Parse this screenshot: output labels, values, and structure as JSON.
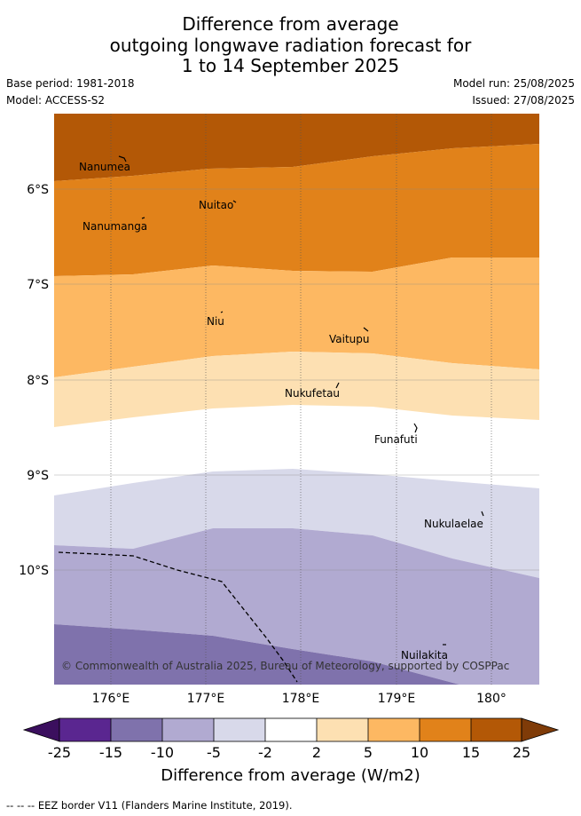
{
  "title_lines": [
    "Difference from average",
    "outgoing longwave radiation forecast for",
    "1 to 14 September 2025"
  ],
  "meta": {
    "base_period": "Base period: 1981-2018",
    "model": "Model: ACCESS-S2",
    "model_run": "Model run: 25/08/2025",
    "issued": "Issued: 27/08/2025"
  },
  "map": {
    "lon_ticks": [
      {
        "value": 176,
        "label": "176°E"
      },
      {
        "value": 177,
        "label": "177°E"
      },
      {
        "value": 178,
        "label": "178°E"
      },
      {
        "value": 179,
        "label": "179°E"
      },
      {
        "value": 180,
        "label": "180°"
      }
    ],
    "lat_ticks": [
      {
        "value": -6,
        "label": "6°S"
      },
      {
        "value": -7,
        "label": "7°S"
      },
      {
        "value": -8,
        "label": "8°S"
      },
      {
        "value": -9,
        "label": "9°S"
      },
      {
        "value": -10,
        "label": "10°S"
      }
    ],
    "places": [
      {
        "name": "Nanumea",
        "lon": 176.13,
        "lat": -5.68
      },
      {
        "name": "Nuitao",
        "lon": 177.29,
        "lat": -6.11
      },
      {
        "name": "Nanumanga",
        "lon": 176.32,
        "lat": -6.29
      },
      {
        "name": "Niu",
        "lon": 177.17,
        "lat": -7.29
      },
      {
        "name": "Vaitupu",
        "lon": 178.68,
        "lat": -7.48
      },
      {
        "name": "Nukufetau",
        "lon": 178.38,
        "lat": -8.03
      },
      {
        "name": "Funafuti",
        "lon": 179.2,
        "lat": -8.52
      },
      {
        "name": "Nukulaelae",
        "lon": 179.85,
        "lat": -9.39
      },
      {
        "name": "Nuilakita",
        "lon": 179.5,
        "lat": -10.78
      }
    ],
    "credit": "© Commonwealth of Australia 2025, Bureau of Meteorology, supported by COSPPac"
  },
  "colorbar": {
    "labels": [
      "-25",
      "-15",
      "-10",
      "-5",
      "-2",
      "2",
      "5",
      "10",
      "15",
      "25"
    ],
    "colors": [
      "#3b0f5e",
      "#5a2690",
      "#7f72ac",
      "#b1aad1",
      "#d8d9ea",
      "#ffffff",
      "#fde0b2",
      "#fdb862",
      "#e1821a",
      "#b35806",
      "#7f3b08"
    ],
    "title": "Difference from average (W/m2)"
  },
  "footer": "-- -- -- EEZ border V11 (Flanders Marine Institute, 2019)."
}
